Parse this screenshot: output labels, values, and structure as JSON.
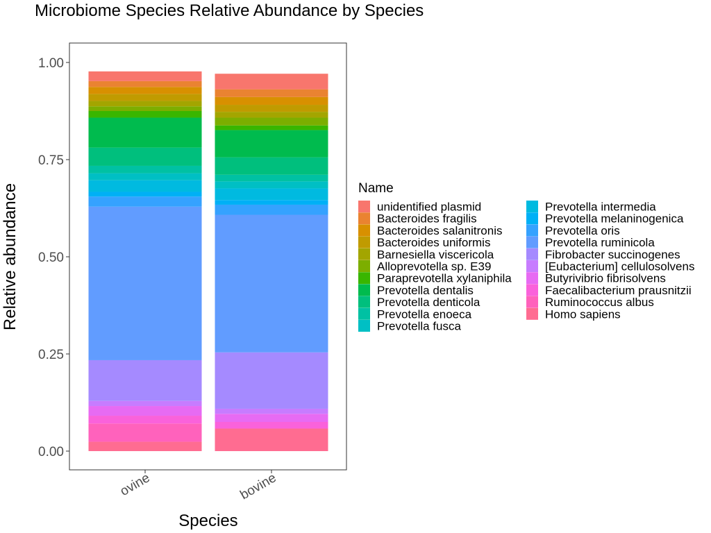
{
  "chart_data": {
    "type": "bar",
    "stacked": true,
    "normalized": true,
    "title": "Microbiome Species Relative Abundance by Species",
    "xlabel": "Species",
    "ylabel": "Relative abundance",
    "categories": [
      "ovine",
      "bovine"
    ],
    "ylim": [
      0,
      1
    ],
    "yticks": [
      0.0,
      0.25,
      0.5,
      0.75,
      1.0
    ],
    "ytick_labels": [
      "0.00",
      "0.25",
      "0.50",
      "0.75",
      "1.00"
    ],
    "grid": false,
    "legend": {
      "title": "Name",
      "placement": "right",
      "columns": 2
    },
    "series": [
      {
        "name": "unidentified plasmid",
        "color": "#F8766D",
        "values": [
          0.025,
          0.04
        ]
      },
      {
        "name": "Bacteroides fragilis",
        "color": "#EA8331",
        "values": [
          0.015,
          0.02
        ]
      },
      {
        "name": "Bacteroides salanitronis",
        "color": "#D89000",
        "values": [
          0.018,
          0.02
        ]
      },
      {
        "name": "Bacteroides uniformis",
        "color": "#C09B00",
        "values": [
          0.018,
          0.018
        ]
      },
      {
        "name": "Barnesiella viscericola",
        "color": "#A3A500",
        "values": [
          0.014,
          0.015
        ]
      },
      {
        "name": "Alloprevotella sp. E39",
        "color": "#7CAE00",
        "values": [
          0.012,
          0.02
        ]
      },
      {
        "name": "Paraprevotella xylaniphila",
        "color": "#39B600",
        "values": [
          0.017,
          0.012
        ]
      },
      {
        "name": "Prevotella dentalis",
        "color": "#00BB4E",
        "values": [
          0.077,
          0.07
        ]
      },
      {
        "name": "Prevotella denticola",
        "color": "#00BF7D",
        "values": [
          0.047,
          0.045
        ]
      },
      {
        "name": "Prevotella enoeca",
        "color": "#00C1A3",
        "values": [
          0.019,
          0.017
        ]
      },
      {
        "name": "Prevotella fusca",
        "color": "#00BFC4",
        "values": [
          0.018,
          0.018
        ]
      },
      {
        "name": "Prevotella intermedia",
        "color": "#00BAE0",
        "values": [
          0.03,
          0.03
        ]
      },
      {
        "name": "Prevotella melaninogenica",
        "color": "#00B0F6",
        "values": [
          0.012,
          0.012
        ]
      },
      {
        "name": "Prevotella oris",
        "color": "#35A2FF",
        "values": [
          0.026,
          0.026
        ]
      },
      {
        "name": "Prevotella ruminicola",
        "color": "#619CFF",
        "values": [
          0.395,
          0.354
        ]
      },
      {
        "name": "Fibrobacter succinogenes",
        "color": "#A58AFF",
        "values": [
          0.105,
          0.145
        ]
      },
      {
        "name": "[Eubacterium] cellulosolvens",
        "color": "#C77CFF",
        "values": [
          0.013,
          0.013
        ]
      },
      {
        "name": "Butyrivibrio fibrisolvens",
        "color": "#E76BF3",
        "values": [
          0.025,
          0.021
        ]
      },
      {
        "name": "Faecalibacterium prausnitzii",
        "color": "#FA62DB",
        "values": [
          0.02,
          0.017
        ]
      },
      {
        "name": "Ruminococcus albus",
        "color": "#FF62BC",
        "values": [
          0.047,
          0.0
        ]
      },
      {
        "name": "Homo sapiens",
        "color": "#FF6C91",
        "values": [
          0.024,
          0.058
        ]
      }
    ]
  }
}
